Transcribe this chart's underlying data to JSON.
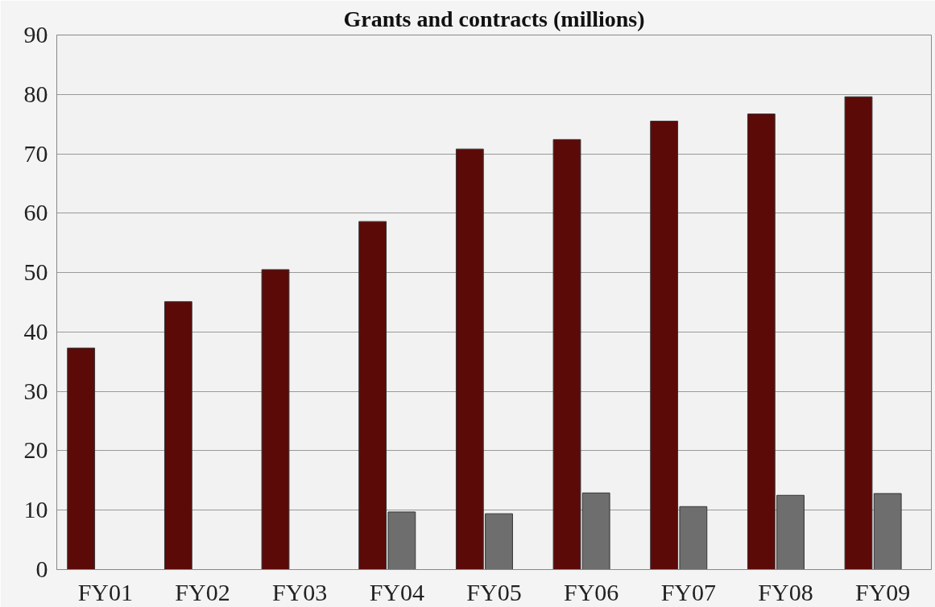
{
  "chart_data": {
    "type": "bar",
    "title": "Grants and contracts (millions)",
    "categories": [
      "FY01",
      "FY02",
      "FY03",
      "FY04",
      "FY05",
      "FY06",
      "FY07",
      "FY08",
      "FY09"
    ],
    "series": [
      {
        "color": "#5c0a08",
        "values": [
          37.3,
          45.1,
          50.5,
          58.6,
          70.8,
          72.4,
          75.5,
          76.7,
          79.6
        ]
      },
      {
        "color": "#6e6e6e",
        "values": [
          null,
          null,
          null,
          9.7,
          9.4,
          12.9,
          10.6,
          12.5,
          12.8
        ]
      }
    ],
    "ylim": [
      0,
      90
    ],
    "yticks": [
      0,
      10,
      20,
      30,
      40,
      50,
      60,
      70,
      80,
      90
    ],
    "grid": "y"
  }
}
